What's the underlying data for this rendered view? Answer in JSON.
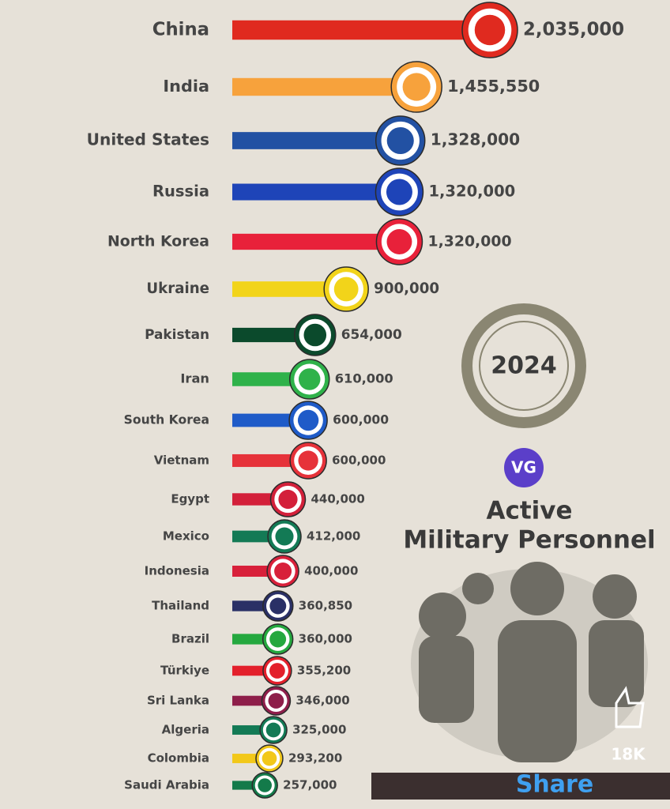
{
  "chart_data": {
    "type": "bar",
    "orientation": "horizontal",
    "categories": [
      "China",
      "India",
      "United States",
      "Russia",
      "North Korea",
      "Ukraine",
      "Pakistan",
      "Iran",
      "South Korea",
      "Vietnam",
      "Egypt",
      "Mexico",
      "Indonesia",
      "Thailand",
      "Brazil",
      "Türkiye",
      "Sri Lanka",
      "Algeria",
      "Colombia",
      "Saudi Arabia"
    ],
    "values": [
      2035000,
      1455550,
      1328000,
      1320000,
      1320000,
      900000,
      654000,
      610000,
      600000,
      600000,
      440000,
      412000,
      400000,
      360850,
      360000,
      355200,
      346000,
      325000,
      293200,
      257000
    ],
    "value_labels": [
      "2,035,000",
      "1,455,550",
      "1,328,000",
      "1,320,000",
      "1,320,000",
      "900,000",
      "654,000",
      "610,000",
      "600,000",
      "600,000",
      "440,000",
      "412,000",
      "400,000",
      "360,850",
      "360,000",
      "355,200",
      "346,000",
      "325,000",
      "293,200",
      "257,000"
    ],
    "colors": [
      "#e02a1f",
      "#f7a23c",
      "#2251a3",
      "#1e44b8",
      "#e8213a",
      "#f2d41a",
      "#0b4a2c",
      "#2fb24a",
      "#1f5bc8",
      "#e6323a",
      "#d3203a",
      "#137a55",
      "#d8203a",
      "#2a3066",
      "#25a83f",
      "#e3202b",
      "#8e1e4a",
      "#137a55",
      "#f2c81a",
      "#137a4a"
    ],
    "year": "2024",
    "logo": "VG",
    "title_line1": "Active",
    "title_line2": "Military Personnel",
    "likes": "18K",
    "share": "Share"
  }
}
